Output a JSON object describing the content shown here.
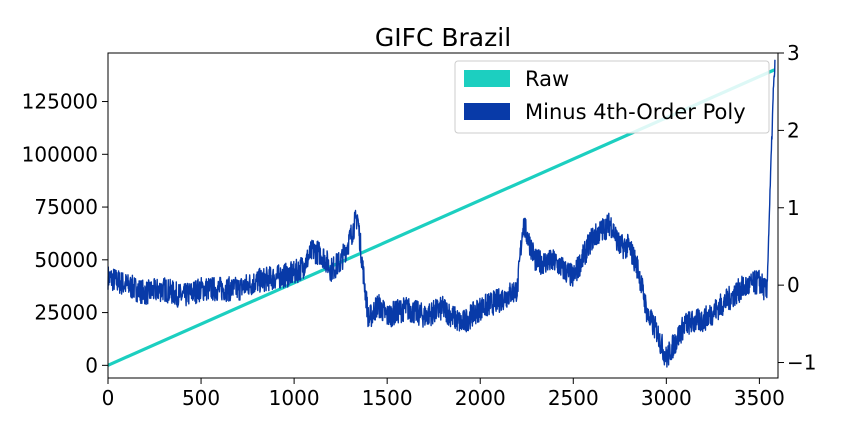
{
  "chart_data": {
    "type": "line",
    "title": "GIFC Brazil",
    "xlabel": "",
    "ylabel": "",
    "xlim": [
      0,
      3600
    ],
    "ylim_left": [
      -6000,
      148000
    ],
    "ylim_right": [
      -1.2,
      3.0
    ],
    "x_ticks": [
      0,
      500,
      1000,
      1500,
      2000,
      2500,
      3000,
      3500
    ],
    "y_ticks_left": [
      0,
      25000,
      50000,
      75000,
      100000,
      125000
    ],
    "y_ticks_right": [
      -1,
      0,
      1,
      2,
      3
    ],
    "legend_position": "top-right",
    "series": [
      {
        "name": "Raw",
        "axis": "left",
        "color": "#1ccfc0",
        "x": [
          0,
          3580
        ],
        "values": [
          0,
          140000
        ]
      },
      {
        "name": "Minus 4th-Order Poly",
        "axis": "right",
        "color": "#083aa8",
        "x": [
          0,
          100,
          200,
          300,
          400,
          500,
          600,
          700,
          800,
          900,
          1000,
          1050,
          1100,
          1150,
          1200,
          1250,
          1300,
          1340,
          1370,
          1400,
          1450,
          1500,
          1600,
          1700,
          1800,
          1900,
          2000,
          2100,
          2200,
          2230,
          2300,
          2400,
          2500,
          2600,
          2700,
          2750,
          2800,
          2850,
          2900,
          2950,
          3000,
          3100,
          3200,
          3300,
          3400,
          3500,
          3540,
          3560,
          3575,
          3585
        ],
        "values": [
          0.1,
          0.0,
          -0.1,
          -0.05,
          -0.15,
          -0.05,
          -0.05,
          -0.05,
          0.05,
          0.1,
          0.15,
          0.25,
          0.45,
          0.4,
          0.2,
          0.3,
          0.6,
          0.9,
          0.2,
          -0.45,
          -0.25,
          -0.4,
          -0.3,
          -0.4,
          -0.3,
          -0.5,
          -0.3,
          -0.2,
          -0.05,
          0.8,
          0.3,
          0.3,
          0.1,
          0.6,
          0.8,
          0.5,
          0.5,
          0.2,
          -0.4,
          -0.6,
          -0.95,
          -0.5,
          -0.45,
          -0.25,
          -0.05,
          0.05,
          -0.1,
          1.4,
          2.5,
          2.9
        ]
      }
    ]
  }
}
